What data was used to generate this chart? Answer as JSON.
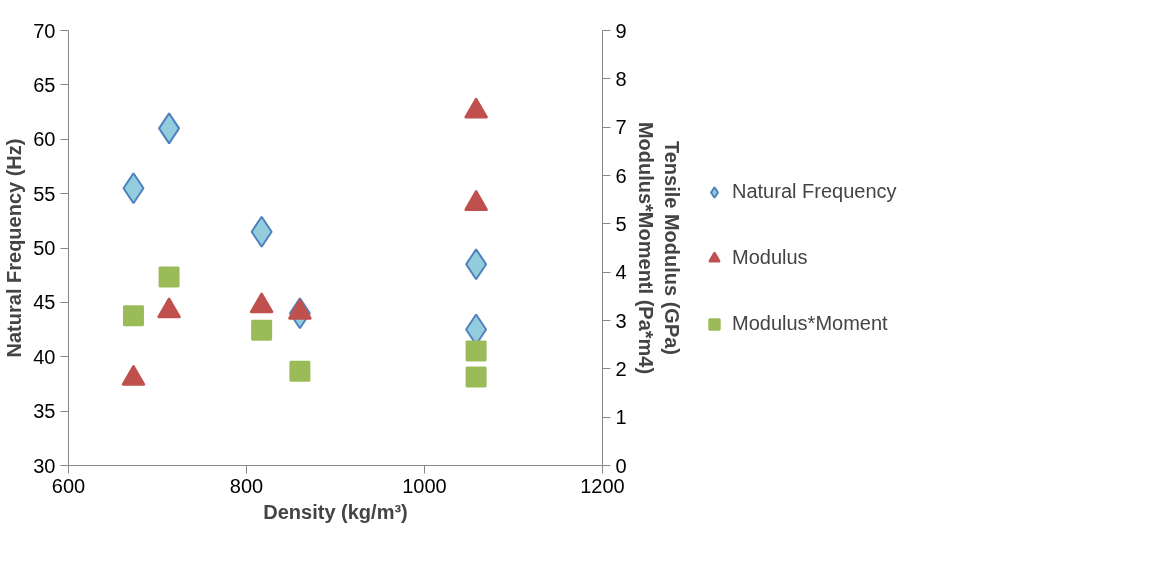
{
  "chart_data": {
    "type": "scatter",
    "xlabel": "Density (kg/m³)",
    "ylabel": "Natural Frequency (Hz)",
    "y2label": "Tensile Modulus (GPa)\nModulus*MomentI (Pa*m4)",
    "xlim": [
      600,
      1200
    ],
    "xticks": [
      600,
      800,
      1000,
      1200
    ],
    "ylim": [
      30,
      70
    ],
    "yticks": [
      30,
      35,
      40,
      45,
      50,
      55,
      60,
      65,
      70
    ],
    "y2lim": [
      0,
      9
    ],
    "y2ticks": [
      0,
      1,
      2,
      3,
      4,
      5,
      6,
      7,
      8,
      9
    ],
    "grid": false,
    "legend": "right",
    "series": [
      {
        "name": "Natural Frequency",
        "color": "#93cddd",
        "marker": "diamond",
        "x": [
          673,
          713,
          817,
          860,
          1058,
          1058
        ],
        "values": [
          55.5,
          61,
          51.5,
          44,
          48.5,
          42.5
        ]
      },
      {
        "name": "Modulus",
        "color": "#c0504d",
        "marker": "triangle",
        "axis": "y2",
        "x": [
          673,
          713,
          817,
          860,
          1058,
          1058
        ],
        "values": [
          1.8,
          3.2,
          3.3,
          3.17,
          7.33,
          5.42
        ]
      },
      {
        "name": "Modulus*Moment",
        "color": "#9bbb59",
        "marker": "square",
        "axis": "y2",
        "x": [
          673,
          713,
          817,
          860,
          1058,
          1058
        ],
        "values": [
          3.1,
          3.9,
          2.8,
          1.95,
          2.37,
          1.83
        ]
      }
    ]
  }
}
